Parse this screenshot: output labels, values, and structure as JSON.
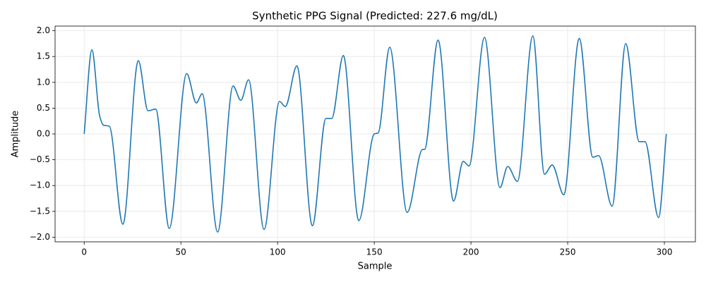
{
  "chart_data": {
    "type": "line",
    "title": "Synthetic PPG Signal (Predicted: 227.6 mg/dL)",
    "x_label": "Sample",
    "y_label": "Amplitude",
    "x": [
      0,
      4,
      8,
      10,
      13,
      20,
      28,
      33,
      37,
      44,
      53,
      58,
      61,
      69,
      77,
      81,
      85,
      93,
      101,
      104,
      110,
      118,
      125,
      128,
      134,
      142,
      150,
      152,
      158,
      167,
      175,
      176,
      183,
      191,
      196,
      199,
      207,
      215,
      219,
      224,
      232,
      238,
      242,
      248,
      256,
      263,
      266,
      273,
      280,
      287,
      290,
      297,
      301
    ],
    "series": [
      {
        "name": "PPG",
        "color": "#1f77b4",
        "values": [
          0,
          1.63,
          0.35,
          0.17,
          0.15,
          -1.75,
          1.42,
          0.45,
          0.48,
          -1.83,
          1.17,
          0.6,
          0.78,
          -1.9,
          0.93,
          0.65,
          1.05,
          -1.85,
          0.63,
          0.53,
          1.32,
          -1.78,
          0.3,
          0.3,
          1.52,
          -1.68,
          0,
          0.02,
          1.68,
          -1.52,
          -0.3,
          -0.3,
          1.82,
          -1.3,
          -0.53,
          -0.62,
          1.87,
          -1.04,
          -0.63,
          -0.92,
          1.9,
          -0.78,
          -0.6,
          -1.18,
          1.85,
          -0.45,
          -0.42,
          -1.4,
          1.75,
          -0.15,
          -0.15,
          -1.62,
          0
        ]
      }
    ],
    "xlim": [
      -15.05,
      316.05
    ],
    "ylim": [
      -2.09,
      2.09
    ],
    "xticks": [
      0,
      50,
      100,
      150,
      200,
      250,
      300
    ],
    "yticks": [
      {
        "value": -2,
        "label": "−2.0"
      },
      {
        "value": -1.5,
        "label": "−1.5"
      },
      {
        "value": -1,
        "label": "−1.0"
      },
      {
        "value": -0.5,
        "label": "−0.5"
      },
      {
        "value": 0,
        "label": "0.0"
      },
      {
        "value": 0.5,
        "label": "0.5"
      },
      {
        "value": 1,
        "label": "1.0"
      },
      {
        "value": 1.5,
        "label": "1.5"
      },
      {
        "value": 2,
        "label": "2.0"
      }
    ],
    "grid": true
  }
}
